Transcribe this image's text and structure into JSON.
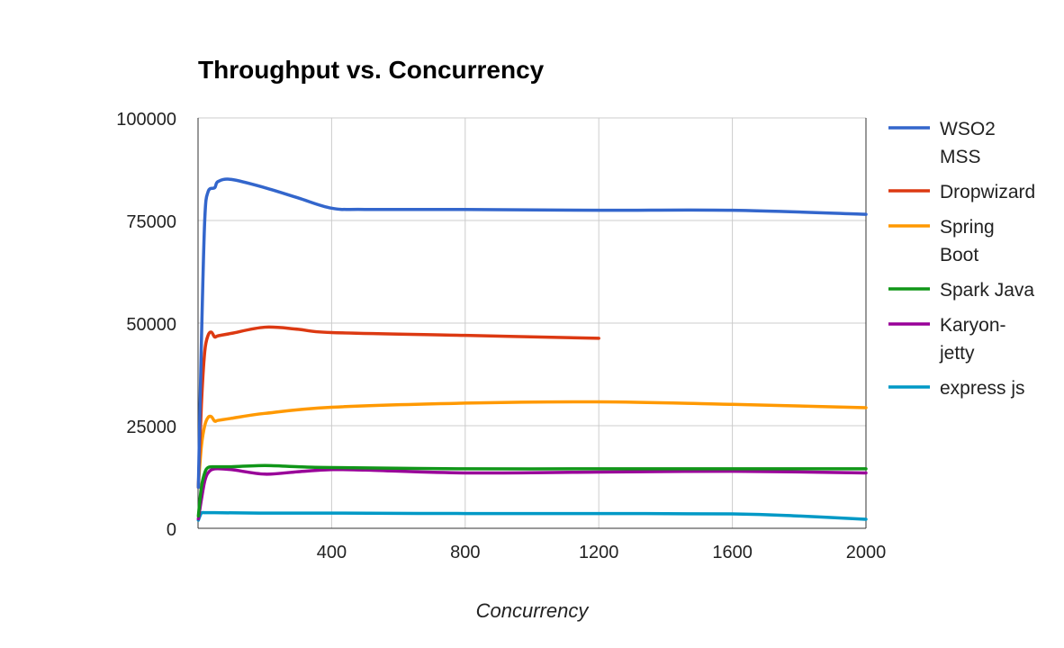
{
  "chart_data": {
    "type": "line",
    "title": "Throughput vs. Concurrency",
    "xlabel": "Concurrency",
    "ylabel": "",
    "xlim": [
      0,
      2000
    ],
    "ylim": [
      0,
      100000
    ],
    "x_ticks": [
      400,
      800,
      1200,
      1600,
      2000
    ],
    "y_ticks": [
      0,
      25000,
      50000,
      75000,
      100000
    ],
    "x_tick_labels": [
      "400",
      "800",
      "1200",
      "1600",
      "2000"
    ],
    "y_tick_labels": [
      "0",
      "25000",
      "50000",
      "75000",
      "100000"
    ],
    "grid": true,
    "legend_position": "right",
    "series": [
      {
        "name": "WSO2 MSS",
        "legend_lines": [
          "WSO2",
          "MSS"
        ],
        "color": "#3366cc",
        "points": [
          [
            1,
            10000
          ],
          [
            10,
            45000
          ],
          [
            20,
            75000
          ],
          [
            30,
            82000
          ],
          [
            50,
            83000
          ],
          [
            60,
            84500
          ],
          [
            100,
            85000
          ],
          [
            200,
            83000
          ],
          [
            300,
            80500
          ],
          [
            400,
            78000
          ],
          [
            500,
            77700
          ],
          [
            800,
            77700
          ],
          [
            1200,
            77500
          ],
          [
            1600,
            77500
          ],
          [
            2000,
            76500
          ]
        ]
      },
      {
        "name": "Dropwizard",
        "legend_lines": [
          "Dropwizard"
        ],
        "color": "#dc3912",
        "points": [
          [
            1,
            10000
          ],
          [
            10,
            30000
          ],
          [
            20,
            43000
          ],
          [
            30,
            47000
          ],
          [
            40,
            47800
          ],
          [
            50,
            46600
          ],
          [
            60,
            46900
          ],
          [
            100,
            47500
          ],
          [
            200,
            49000
          ],
          [
            300,
            48500
          ],
          [
            400,
            47700
          ],
          [
            800,
            47000
          ],
          [
            1200,
            46300
          ]
        ]
      },
      {
        "name": "Spring Boot",
        "legend_lines": [
          "Spring",
          "Boot"
        ],
        "color": "#ff9900",
        "points": [
          [
            1,
            10500
          ],
          [
            10,
            20000
          ],
          [
            20,
            25000
          ],
          [
            30,
            27000
          ],
          [
            40,
            27200
          ],
          [
            50,
            26100
          ],
          [
            60,
            26300
          ],
          [
            100,
            26800
          ],
          [
            200,
            28000
          ],
          [
            400,
            29500
          ],
          [
            800,
            30500
          ],
          [
            1200,
            30800
          ],
          [
            1600,
            30200
          ],
          [
            2000,
            29400
          ]
        ]
      },
      {
        "name": "Spark Java",
        "legend_lines": [
          "Spark Java"
        ],
        "color": "#109618",
        "points": [
          [
            1,
            3000
          ],
          [
            10,
            10000
          ],
          [
            20,
            13500
          ],
          [
            30,
            14800
          ],
          [
            50,
            15000
          ],
          [
            100,
            15000
          ],
          [
            200,
            15300
          ],
          [
            300,
            15000
          ],
          [
            400,
            14800
          ],
          [
            800,
            14500
          ],
          [
            1200,
            14500
          ],
          [
            1600,
            14500
          ],
          [
            2000,
            14500
          ]
        ]
      },
      {
        "name": "Karyon-jetty",
        "legend_lines": [
          "Karyon-",
          "jetty"
        ],
        "color": "#990099",
        "points": [
          [
            1,
            2300
          ],
          [
            10,
            7000
          ],
          [
            20,
            11500
          ],
          [
            30,
            13500
          ],
          [
            50,
            14500
          ],
          [
            100,
            14300
          ],
          [
            200,
            13200
          ],
          [
            300,
            13800
          ],
          [
            400,
            14300
          ],
          [
            500,
            14200
          ],
          [
            800,
            13500
          ],
          [
            1200,
            13700
          ],
          [
            1600,
            13900
          ],
          [
            2000,
            13500
          ]
        ]
      },
      {
        "name": "express js",
        "legend_lines": [
          "express js"
        ],
        "color": "#0099c6",
        "points": [
          [
            1,
            2000
          ],
          [
            10,
            3700
          ],
          [
            20,
            3800
          ],
          [
            50,
            3800
          ],
          [
            200,
            3700
          ],
          [
            400,
            3700
          ],
          [
            800,
            3600
          ],
          [
            1200,
            3600
          ],
          [
            1600,
            3500
          ],
          [
            1800,
            3000
          ],
          [
            2000,
            2200
          ]
        ]
      }
    ]
  }
}
